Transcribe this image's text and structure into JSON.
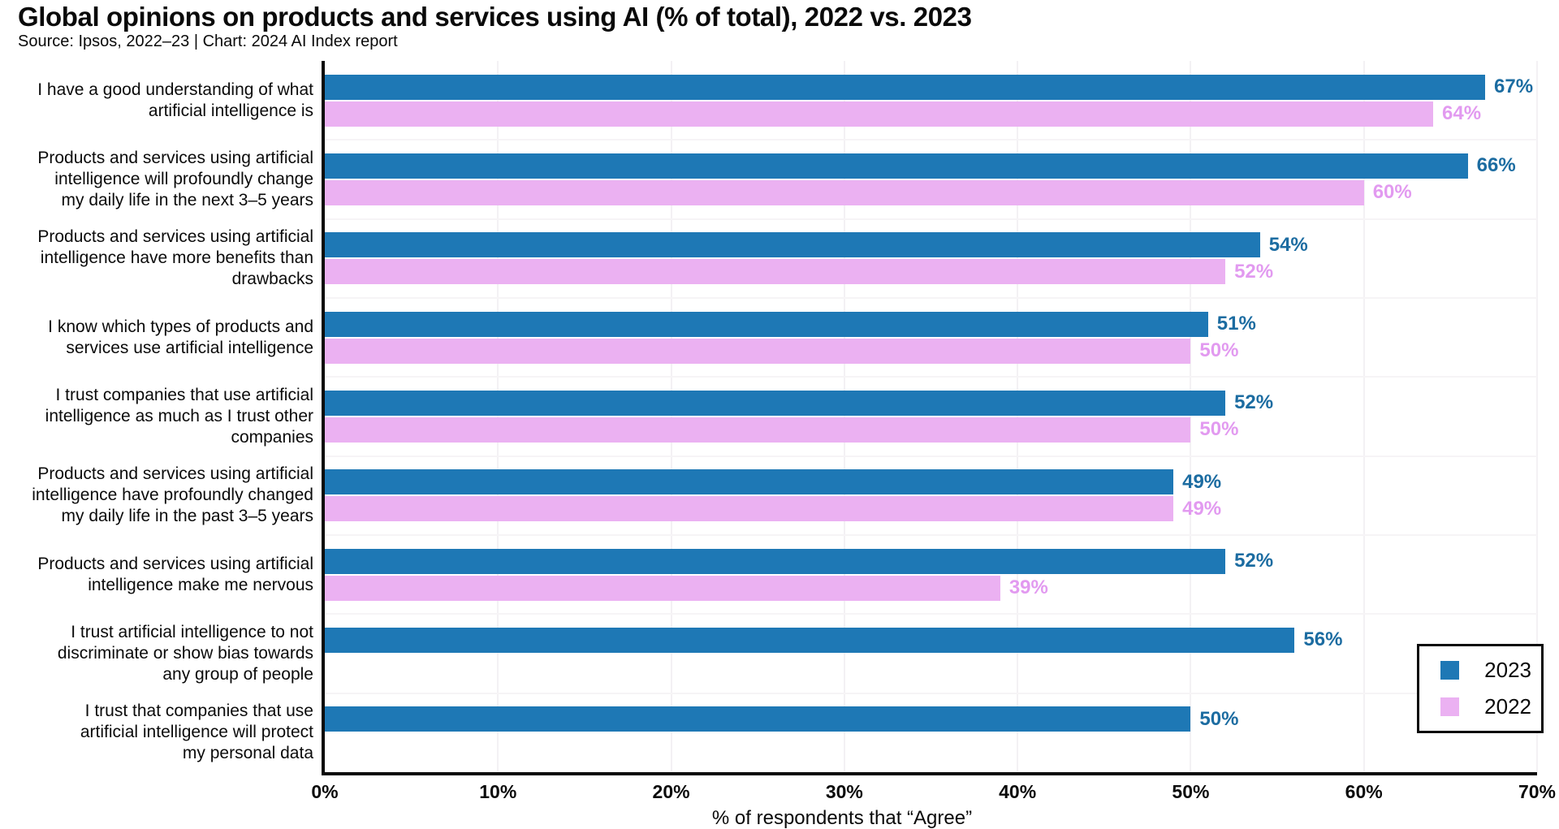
{
  "title": "Global opinions on products and services using AI (% of total), 2022 vs. 2023",
  "subtitle": "Source: Ipsos, 2022–23 | Chart: 2024 AI Index report",
  "colors": {
    "bar_2023": "#1e78b5",
    "bar_2022": "#ebb1f2",
    "value_label_2023": "#1c6ca1",
    "value_label_2022": "#e29af0",
    "axis": "#0a0a0a",
    "gridline": "#f3f1f4"
  },
  "chart_data": {
    "type": "bar",
    "orientation": "horizontal",
    "title": "Global opinions on products and services using AI (% of total), 2022 vs. 2023",
    "xlabel": "% of respondents that “Agree”",
    "xlim": [
      0,
      70
    ],
    "xticks": [
      "0%",
      "10%",
      "20%",
      "30%",
      "40%",
      "50%",
      "60%",
      "70%"
    ],
    "grid": true,
    "legend_position": "lower right",
    "value_label_suffix": "%",
    "categories": [
      [
        "I have a good understanding of what",
        "artificial intelligence is"
      ],
      [
        "Products and services using artificial",
        "intelligence will profoundly change",
        "my daily life in the next 3–5 years"
      ],
      [
        "Products and services using artificial",
        "intelligence have more benefits than",
        "drawbacks"
      ],
      [
        "I know which types of products and",
        "services use artificial intelligence"
      ],
      [
        "I trust companies that use artificial",
        "intelligence as much as I trust other",
        "companies"
      ],
      [
        "Products and services using artificial",
        "intelligence have profoundly changed",
        "my daily life in the past 3–5 years"
      ],
      [
        "Products and services using artificial",
        "intelligence make me nervous"
      ],
      [
        "I trust artificial intelligence to not",
        "discriminate or show bias towards",
        "any group of people"
      ],
      [
        "I trust that companies that use",
        "artificial intelligence will protect",
        "my personal data"
      ]
    ],
    "series": [
      {
        "name": "2023",
        "color": "#1e78b5",
        "label_color": "#1c6ca1",
        "values": [
          67,
          66,
          54,
          51,
          52,
          49,
          52,
          56,
          50
        ]
      },
      {
        "name": "2022",
        "color": "#ebb1f2",
        "label_color": "#e29af0",
        "values": [
          64,
          60,
          52,
          50,
          50,
          49,
          39,
          null,
          null
        ]
      }
    ]
  },
  "legend": {
    "items": [
      {
        "label": "2023",
        "color": "#1e78b5"
      },
      {
        "label": "2022",
        "color": "#ebb1f2"
      }
    ]
  }
}
